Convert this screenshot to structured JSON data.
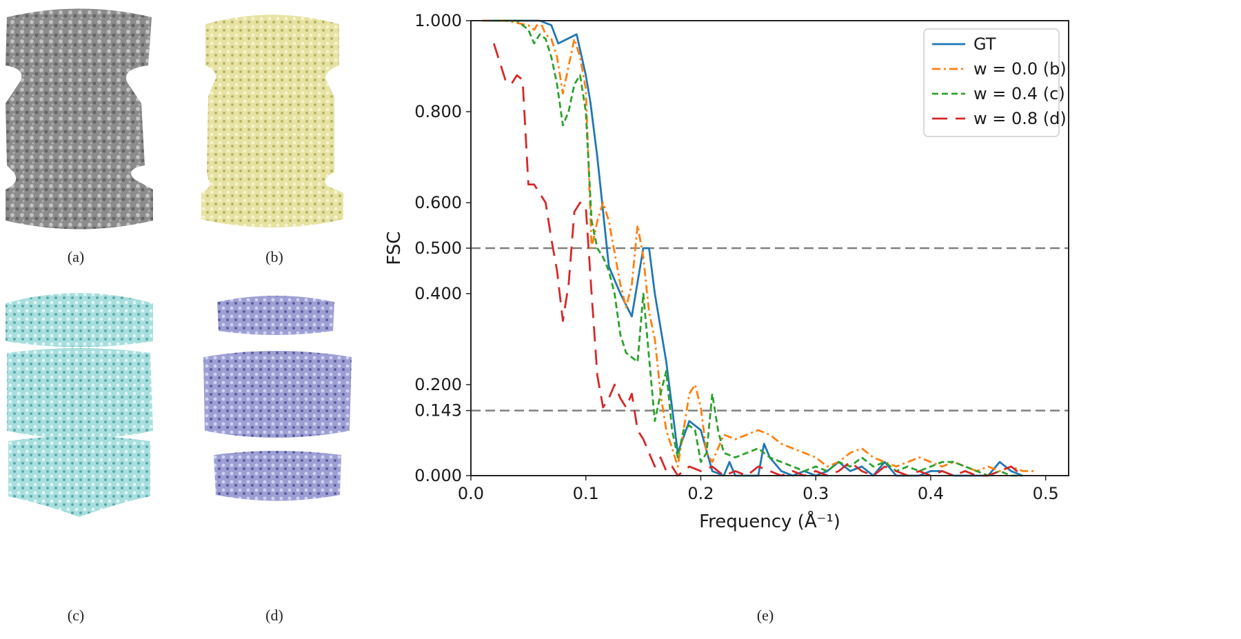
{
  "panels": [
    {
      "label": "(a)",
      "color": "#8c8c8c",
      "shade": "#5a5a5a",
      "highlight": "#cfcfcf"
    },
    {
      "label": "(b)",
      "color": "#e6e2a2",
      "shade": "#b8b26a",
      "highlight": "#f6f3cf"
    },
    {
      "label": "(c)",
      "color": "#a7dede",
      "shade": "#5fa7a8",
      "highlight": "#dff5f4"
    },
    {
      "label": "(d)",
      "color": "#9d9fd4",
      "shade": "#5b5d98",
      "highlight": "#d0d2f1"
    }
  ],
  "chart_label": "(e)",
  "chart_data": {
    "type": "line",
    "xlabel": "Frequency (Å⁻¹)",
    "ylabel": "FSC",
    "xlim": [
      0.0,
      0.52
    ],
    "ylim": [
      0.0,
      1.0
    ],
    "xticks": [
      0.0,
      0.1,
      0.2,
      0.3,
      0.4,
      0.5
    ],
    "xtick_labels": [
      "0.0",
      "0.1",
      "0.2",
      "0.3",
      "0.4",
      "0.5"
    ],
    "yticks": [
      0.0,
      0.143,
      0.2,
      0.4,
      0.5,
      0.6,
      0.8,
      1.0
    ],
    "ytick_labels": [
      "0.000",
      "0.143",
      "0.200",
      "0.400",
      "0.500",
      "0.600",
      "0.800",
      "1.000"
    ],
    "hlines": [
      0.5,
      0.143
    ],
    "legend_position": "top-right",
    "series": [
      {
        "name": "GT",
        "color": "#1f77b4",
        "dash": "solid",
        "x": [
          0.01,
          0.03,
          0.05,
          0.06,
          0.07,
          0.076,
          0.084,
          0.092,
          0.1,
          0.104,
          0.11,
          0.12,
          0.13,
          0.14,
          0.15,
          0.155,
          0.16,
          0.17,
          0.18,
          0.19,
          0.2,
          0.21,
          0.22,
          0.225,
          0.23,
          0.24,
          0.25,
          0.255,
          0.26,
          0.27,
          0.28,
          0.29,
          0.3,
          0.31,
          0.32,
          0.33,
          0.34,
          0.35,
          0.36,
          0.37,
          0.38,
          0.39,
          0.4,
          0.41,
          0.42,
          0.43,
          0.44,
          0.45,
          0.46,
          0.47,
          0.48
        ],
        "y": [
          1.0,
          1.0,
          1.0,
          1.0,
          0.99,
          0.95,
          0.96,
          0.97,
          0.88,
          0.82,
          0.7,
          0.46,
          0.4,
          0.35,
          0.5,
          0.5,
          0.4,
          0.25,
          0.05,
          0.12,
          0.1,
          0.01,
          0.0,
          0.03,
          0.0,
          0.0,
          0.0,
          0.07,
          0.04,
          0.01,
          0.0,
          0.01,
          0.0,
          0.01,
          0.03,
          0.01,
          0.02,
          0.0,
          0.03,
          0.0,
          0.0,
          0.0,
          0.01,
          0.01,
          0.0,
          0.0,
          0.0,
          0.0,
          0.03,
          0.01,
          0.0
        ]
      },
      {
        "name": "w = 0.0 (b)",
        "color": "#ff7f0e",
        "dash": "dashdot",
        "x": [
          0.01,
          0.03,
          0.05,
          0.055,
          0.06,
          0.065,
          0.07,
          0.075,
          0.08,
          0.085,
          0.09,
          0.095,
          0.1,
          0.105,
          0.11,
          0.115,
          0.12,
          0.13,
          0.135,
          0.14,
          0.145,
          0.15,
          0.155,
          0.16,
          0.165,
          0.17,
          0.175,
          0.18,
          0.185,
          0.19,
          0.195,
          0.2,
          0.205,
          0.21,
          0.215,
          0.22,
          0.23,
          0.24,
          0.25,
          0.26,
          0.27,
          0.28,
          0.29,
          0.3,
          0.31,
          0.32,
          0.33,
          0.34,
          0.35,
          0.36,
          0.37,
          0.38,
          0.39,
          0.4,
          0.41,
          0.42,
          0.43,
          0.44,
          0.45,
          0.46,
          0.47,
          0.48,
          0.49
        ],
        "y": [
          1.0,
          1.0,
          0.99,
          0.98,
          1.0,
          0.97,
          0.96,
          0.92,
          0.84,
          0.9,
          0.96,
          0.92,
          0.85,
          0.5,
          0.56,
          0.6,
          0.56,
          0.42,
          0.37,
          0.42,
          0.55,
          0.48,
          0.36,
          0.3,
          0.18,
          0.1,
          0.06,
          0.02,
          0.1,
          0.18,
          0.2,
          0.15,
          0.05,
          0.03,
          0.06,
          0.09,
          0.08,
          0.09,
          0.1,
          0.09,
          0.07,
          0.06,
          0.05,
          0.04,
          0.02,
          0.03,
          0.05,
          0.06,
          0.04,
          0.03,
          0.02,
          0.03,
          0.04,
          0.03,
          0.02,
          0.03,
          0.02,
          0.01,
          0.02,
          0.01,
          0.02,
          0.01,
          0.01
        ]
      },
      {
        "name": "w = 0.4 (c)",
        "color": "#2ca02c",
        "dash": "dashed",
        "x": [
          0.02,
          0.04,
          0.05,
          0.055,
          0.06,
          0.065,
          0.07,
          0.075,
          0.08,
          0.085,
          0.09,
          0.095,
          0.1,
          0.105,
          0.11,
          0.115,
          0.12,
          0.125,
          0.13,
          0.135,
          0.14,
          0.145,
          0.15,
          0.155,
          0.16,
          0.165,
          0.17,
          0.175,
          0.18,
          0.185,
          0.19,
          0.195,
          0.2,
          0.205,
          0.21,
          0.215,
          0.22,
          0.23,
          0.24,
          0.25,
          0.26,
          0.27,
          0.28,
          0.29,
          0.3,
          0.31,
          0.32,
          0.33,
          0.34,
          0.35,
          0.36,
          0.37,
          0.38,
          0.39,
          0.4,
          0.41,
          0.42,
          0.43,
          0.44,
          0.45,
          0.46,
          0.47,
          0.48
        ],
        "y": [
          1.0,
          1.0,
          0.98,
          0.95,
          0.97,
          0.96,
          0.92,
          0.86,
          0.77,
          0.8,
          0.86,
          0.88,
          0.8,
          0.56,
          0.5,
          0.48,
          0.45,
          0.4,
          0.31,
          0.27,
          0.26,
          0.25,
          0.4,
          0.26,
          0.12,
          0.18,
          0.23,
          0.1,
          0.04,
          0.1,
          0.11,
          0.1,
          0.03,
          0.05,
          0.18,
          0.1,
          0.05,
          0.04,
          0.05,
          0.06,
          0.04,
          0.03,
          0.02,
          0.01,
          0.02,
          0.01,
          0.03,
          0.02,
          0.04,
          0.02,
          0.03,
          0.01,
          0.02,
          0.01,
          0.02,
          0.03,
          0.03,
          0.02,
          0.01,
          0.0,
          0.01,
          0.0,
          0.0
        ]
      },
      {
        "name": "w = 0.8 (d)",
        "color": "#d62728",
        "dash": "longdash",
        "x": [
          0.02,
          0.03,
          0.035,
          0.04,
          0.045,
          0.05,
          0.055,
          0.06,
          0.065,
          0.07,
          0.075,
          0.08,
          0.085,
          0.09,
          0.095,
          0.1,
          0.105,
          0.11,
          0.115,
          0.12,
          0.125,
          0.13,
          0.135,
          0.14,
          0.145,
          0.15,
          0.155,
          0.16,
          0.165,
          0.17,
          0.175,
          0.18,
          0.19,
          0.2,
          0.21,
          0.22,
          0.23,
          0.24,
          0.25,
          0.26,
          0.27,
          0.28,
          0.29,
          0.3,
          0.31,
          0.32,
          0.33,
          0.34,
          0.35,
          0.36,
          0.37,
          0.38,
          0.39,
          0.4,
          0.41,
          0.42,
          0.43,
          0.44,
          0.45,
          0.46,
          0.47,
          0.48
        ],
        "y": [
          0.95,
          0.87,
          0.86,
          0.88,
          0.87,
          0.64,
          0.64,
          0.62,
          0.6,
          0.52,
          0.45,
          0.34,
          0.42,
          0.58,
          0.6,
          0.59,
          0.4,
          0.22,
          0.15,
          0.17,
          0.2,
          0.17,
          0.15,
          0.18,
          0.1,
          0.08,
          0.05,
          0.02,
          0.04,
          0.01,
          0.02,
          0.0,
          0.02,
          0.01,
          0.02,
          0.0,
          0.01,
          0.0,
          0.02,
          0.01,
          0.0,
          0.01,
          0.0,
          0.01,
          0.0,
          0.01,
          0.03,
          0.01,
          0.0,
          0.02,
          0.01,
          0.0,
          0.01,
          0.0,
          0.01,
          0.0,
          0.01,
          0.0,
          0.0,
          0.01,
          0.02,
          0.0
        ]
      }
    ]
  }
}
